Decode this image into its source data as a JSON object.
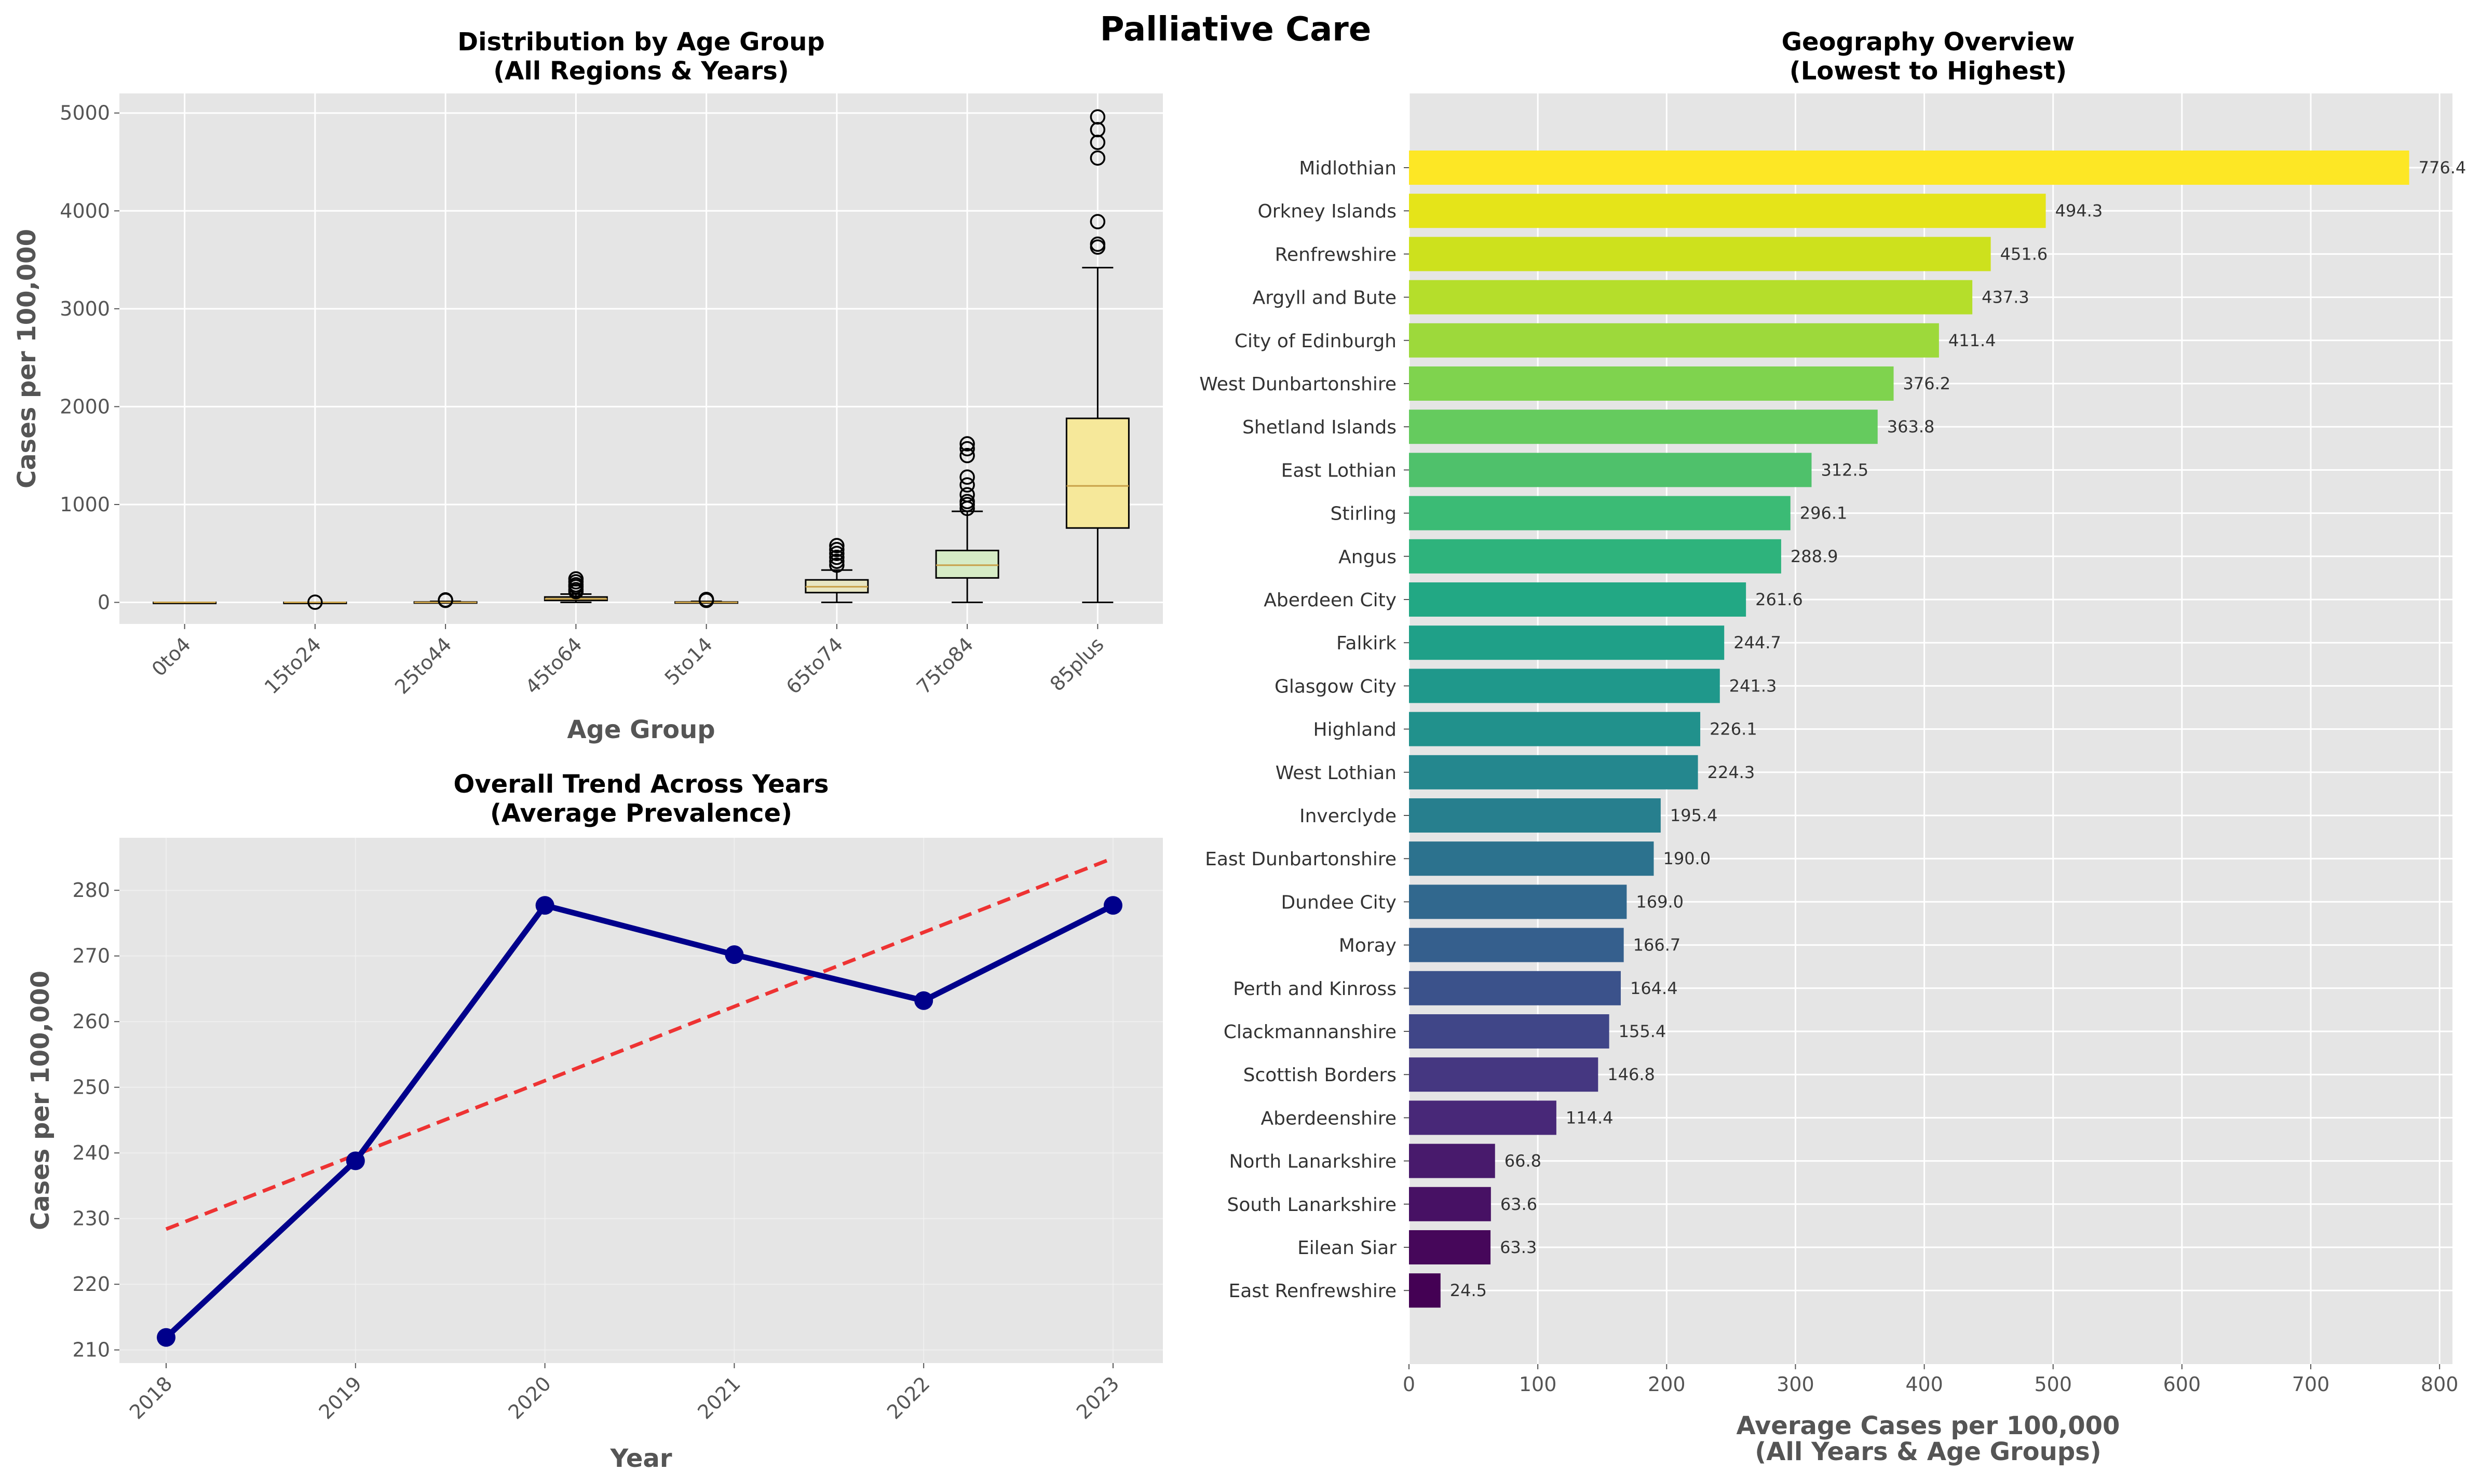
{
  "suptitle": "Palliative Care",
  "colors": {
    "panel_bg": "#e5e5e5",
    "grid": "#ffffff",
    "trend_line": "#00008b",
    "trend_fit": "#ee3333",
    "box_edge": "#000000",
    "median": "#c8a048"
  },
  "chart_data": [
    {
      "type": "box",
      "title": "Distribution by Age Group\n(All Regions & Years)",
      "xlabel": "Age Group",
      "ylabel": "Cases per 100,000",
      "ylim": [
        -220,
        5200
      ],
      "yticks": [
        0,
        1000,
        2000,
        3000,
        4000,
        5000
      ],
      "grid": true,
      "categories": [
        "0to4",
        "15to24",
        "25to44",
        "45to64",
        "5to14",
        "65to74",
        "75to84",
        "85plus"
      ],
      "boxes": [
        {
          "min": 0,
          "q1": 0,
          "median": 0,
          "q3": 0,
          "max": 0,
          "outliers": [],
          "color": "#d4d0c2"
        },
        {
          "min": 0,
          "q1": 0,
          "median": 0,
          "q3": 0,
          "max": 0,
          "outliers": [
            2
          ],
          "color": "#d8d2b8"
        },
        {
          "min": 0,
          "q1": 0,
          "median": 0,
          "q3": 4,
          "max": 10,
          "outliers": [
            20,
            25
          ],
          "color": "#dcd6b0"
        },
        {
          "min": 0,
          "q1": 20,
          "median": 35,
          "q3": 55,
          "max": 85,
          "outliers": [
            110,
            130,
            160,
            180,
            210,
            240
          ],
          "color": "#e0d9a6"
        },
        {
          "min": 0,
          "q1": 0,
          "median": 0,
          "q3": 4,
          "max": 10,
          "outliers": [
            20,
            30
          ],
          "color": "#e4dc9e"
        },
        {
          "min": 0,
          "q1": 100,
          "median": 160,
          "q3": 230,
          "max": 330,
          "outliers": [
            380,
            420,
            460,
            500,
            540,
            580
          ],
          "color": "#e8e6c2"
        },
        {
          "min": 0,
          "q1": 250,
          "median": 380,
          "q3": 530,
          "max": 930,
          "outliers": [
            960,
            1000,
            1030,
            1100,
            1200,
            1280,
            1500,
            1570,
            1620
          ],
          "color": "#d6ecc6"
        },
        {
          "min": 0,
          "q1": 760,
          "median": 1190,
          "q3": 1880,
          "max": 3420,
          "outliers": [
            3630,
            3660,
            3890,
            4540,
            4700,
            4830,
            4960
          ],
          "color": "#f6e89a"
        }
      ]
    },
    {
      "type": "line",
      "title": "Overall Trend Across Years\n(Average Prevalence)",
      "xlabel": "Year",
      "ylabel": "Cases per 100,000",
      "x": [
        "2018",
        "2019",
        "2020",
        "2021",
        "2022",
        "2023"
      ],
      "values": [
        211.9,
        238.8,
        277.7,
        270.2,
        263.2,
        277.7
      ],
      "trend": [
        228.4,
        239.7,
        251.0,
        262.3,
        273.6,
        284.9
      ],
      "ylim": [
        208,
        288
      ],
      "yticks": [
        210,
        220,
        230,
        240,
        250,
        260,
        270,
        280
      ],
      "grid": true
    },
    {
      "type": "bar",
      "orientation": "horizontal",
      "title": "Geography Overview\n(Lowest to Highest)",
      "xlabel": "Average Cases per 100,000\n(All Years & Age Groups)",
      "xlim": [
        0,
        810
      ],
      "xticks": [
        0,
        100,
        200,
        300,
        400,
        500,
        600,
        700,
        800
      ],
      "grid": true,
      "categories": [
        "Midlothian",
        "Orkney Islands",
        "Renfrewshire",
        "Argyll and Bute",
        "City of Edinburgh",
        "West Dunbartonshire",
        "Shetland Islands",
        "East Lothian",
        "Stirling",
        "Angus",
        "Aberdeen City",
        "Falkirk",
        "Glasgow City",
        "Highland",
        "West Lothian",
        "Inverclyde",
        "East Dunbartonshire",
        "Dundee City",
        "Moray",
        "Perth and Kinross",
        "Clackmannanshire",
        "Scottish Borders",
        "Aberdeenshire",
        "North Lanarkshire",
        "South Lanarkshire",
        "Eilean Siar",
        "East Renfrewshire"
      ],
      "values": [
        776.4,
        494.3,
        451.6,
        437.3,
        411.4,
        376.2,
        363.8,
        312.5,
        296.1,
        288.9,
        261.6,
        244.7,
        241.3,
        226.1,
        224.3,
        195.4,
        190.0,
        169.0,
        166.7,
        164.4,
        155.4,
        146.8,
        114.4,
        66.8,
        63.6,
        63.3,
        24.5
      ],
      "labels": [
        "776.4",
        "494.3",
        "451.6",
        "437.3",
        "411.4",
        "376.2",
        "363.8",
        "312.5",
        "296.1",
        "288.9",
        "261.6",
        "244.7",
        "241.3",
        "226.1",
        "224.3",
        "195.4",
        "190.0",
        "169.0",
        "166.7",
        "164.4",
        "155.4",
        "146.8",
        "114.4",
        "66.8",
        "63.6",
        "63.3",
        "24.5"
      ],
      "colors": [
        "#fde725",
        "#e5e419",
        "#cde11d",
        "#b5de2b",
        "#9dd93b",
        "#7fd34e",
        "#65cb5e",
        "#4fc16b",
        "#3bbb75",
        "#2eb37c",
        "#22a884",
        "#1fa088",
        "#1f988b",
        "#21918c",
        "#24878e",
        "#277f8e",
        "#2c728e",
        "#31688e",
        "#355f8d",
        "#3b528b",
        "#404688",
        "#453781",
        "#482878",
        "#481a6c",
        "#471164",
        "#46075a",
        "#440154"
      ]
    }
  ]
}
